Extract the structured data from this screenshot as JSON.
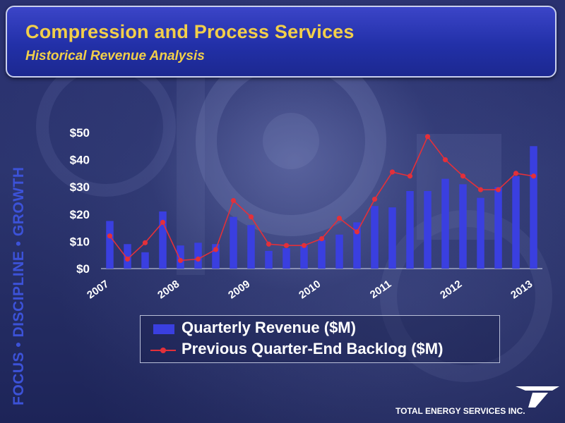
{
  "header": {
    "title": "Compression and Process Services",
    "subtitle": "Historical Revenue Analysis"
  },
  "side_banner": "FOCUS • DISCIPLINE • GROWTH",
  "logo": {
    "company": "TOTAL ENERGY SERVICES INC.",
    "icon": "total-energy-logo-icon"
  },
  "colors": {
    "bar": "#3a3fe0",
    "line": "#e3303a",
    "title": "#f2cf4a",
    "side_text": "#3c52d8"
  },
  "chart_data": {
    "type": "bar",
    "title": "",
    "xlabel": "",
    "ylabel": "",
    "ylim": [
      0,
      50
    ],
    "y_ticks": [
      "$0",
      "$10",
      "$20",
      "$30",
      "$40",
      "$50"
    ],
    "x_ticks": [
      "2007",
      "2008",
      "2009",
      "2010",
      "2011",
      "2012",
      "2013"
    ],
    "grid": false,
    "legend_position": "bottom",
    "quarters": 25,
    "series": [
      {
        "name": "Quarterly Revenue ($M)",
        "type": "bar",
        "values": [
          17.5,
          9,
          6,
          21,
          8.5,
          9.5,
          9,
          19,
          16,
          6.5,
          7.5,
          8.5,
          10.5,
          12.5,
          17,
          23,
          22.5,
          28.5,
          28.5,
          33,
          31,
          26,
          30,
          34,
          45
        ]
      },
      {
        "name": "Previous Quarter-End Backlog ($M)",
        "type": "line",
        "values": [
          12,
          3.5,
          9.5,
          17,
          3,
          3.5,
          7,
          25,
          19,
          9,
          8.5,
          8.5,
          11,
          18.5,
          13.5,
          25.5,
          35.5,
          34,
          48.5,
          40,
          34,
          29,
          29,
          35,
          34
        ]
      }
    ]
  }
}
